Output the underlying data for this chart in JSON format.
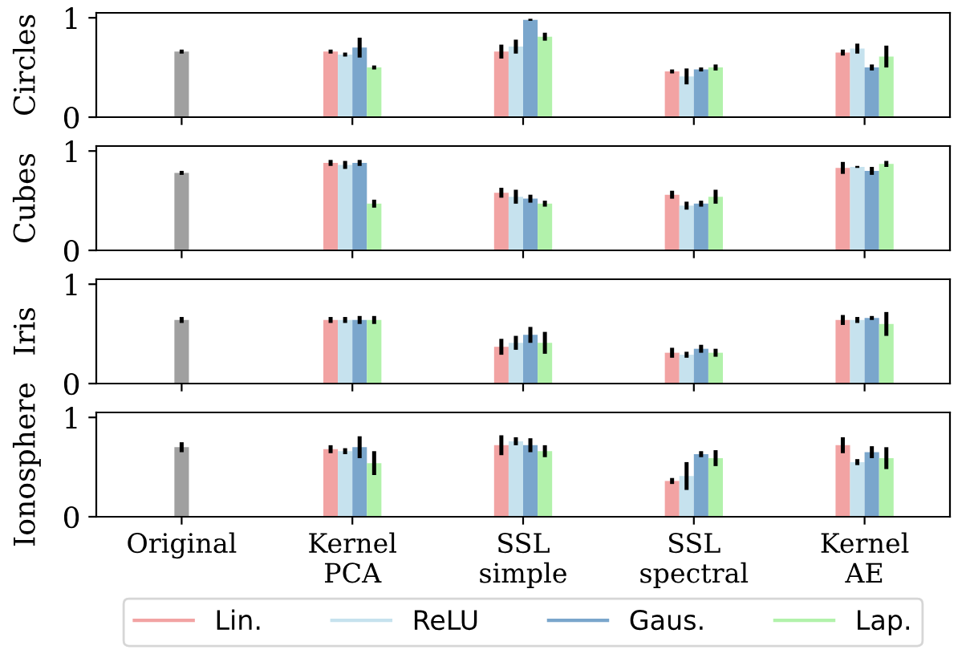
{
  "chart_data": [
    {
      "type": "bar",
      "ylabel": "Circles",
      "categories": [
        null,
        null,
        null,
        null,
        null
      ],
      "ylim": [
        0,
        1.05
      ],
      "yticks": [
        0,
        1
      ],
      "legend": "bottom",
      "series": [
        {
          "color": "#a0a0a0",
          "values": [
            0.66,
            null,
            null,
            null,
            null
          ],
          "errors": [
            0.02,
            null,
            null,
            null,
            null
          ]
        },
        {
          "name": "Lin.",
          "color": "#f2a3a3",
          "values": [
            null,
            0.66,
            0.66,
            0.46,
            0.65
          ],
          "errors": [
            null,
            0.02,
            0.07,
            0.02,
            0.03
          ]
        },
        {
          "name": "ReLU",
          "color": "#c6e2ee",
          "values": [
            null,
            0.63,
            0.71,
            0.41,
            0.69
          ],
          "errors": [
            null,
            0.02,
            0.07,
            0.08,
            0.05
          ]
        },
        {
          "name": "Gaus.",
          "color": "#7aa6cc",
          "values": [
            null,
            0.7,
            0.98,
            0.48,
            0.5
          ],
          "errors": [
            null,
            0.1,
            0.01,
            0.02,
            0.03
          ]
        },
        {
          "name": "Lap.",
          "color": "#b2f2ab",
          "values": [
            null,
            0.5,
            0.81,
            0.5,
            0.61
          ],
          "errors": [
            null,
            0.02,
            0.04,
            0.03,
            0.11
          ]
        }
      ]
    },
    {
      "type": "bar",
      "ylabel": "Cubes",
      "categories": [
        null,
        null,
        null,
        null,
        null
      ],
      "ylim": [
        0,
        1.05
      ],
      "yticks": [
        0,
        1
      ],
      "series": [
        {
          "color": "#a0a0a0",
          "values": [
            0.78,
            null,
            null,
            null,
            null
          ],
          "errors": [
            0.02,
            null,
            null,
            null,
            null
          ]
        },
        {
          "color": "#f2a3a3",
          "values": [
            null,
            0.88,
            0.58,
            0.56,
            0.83
          ],
          "errors": [
            null,
            0.03,
            0.05,
            0.04,
            0.06
          ]
        },
        {
          "color": "#c6e2ee",
          "values": [
            null,
            0.86,
            0.54,
            0.45,
            0.84
          ],
          "errors": [
            null,
            0.04,
            0.07,
            0.04,
            0.01
          ]
        },
        {
          "color": "#7aa6cc",
          "values": [
            null,
            0.88,
            0.52,
            0.47,
            0.8
          ],
          "errors": [
            null,
            0.03,
            0.04,
            0.03,
            0.04
          ]
        },
        {
          "color": "#b2f2ab",
          "values": [
            null,
            0.47,
            0.47,
            0.54,
            0.87
          ],
          "errors": [
            null,
            0.04,
            0.03,
            0.07,
            0.03
          ]
        }
      ]
    },
    {
      "type": "bar",
      "ylabel": "Iris",
      "categories": [
        null,
        null,
        null,
        null,
        null
      ],
      "ylim": [
        0,
        1.05
      ],
      "yticks": [
        0,
        1
      ],
      "series": [
        {
          "color": "#a0a0a0",
          "values": [
            0.64,
            null,
            null,
            null,
            null
          ],
          "errors": [
            0.03,
            null,
            null,
            null,
            null
          ]
        },
        {
          "color": "#f2a3a3",
          "values": [
            null,
            0.64,
            0.37,
            0.31,
            0.64
          ],
          "errors": [
            null,
            0.03,
            0.08,
            0.05,
            0.05
          ]
        },
        {
          "color": "#c6e2ee",
          "values": [
            null,
            0.64,
            0.41,
            0.29,
            0.64
          ],
          "errors": [
            null,
            0.03,
            0.07,
            0.03,
            0.03
          ]
        },
        {
          "color": "#7aa6cc",
          "values": [
            null,
            0.64,
            0.49,
            0.35,
            0.66
          ],
          "errors": [
            null,
            0.04,
            0.08,
            0.04,
            0.02
          ]
        },
        {
          "color": "#b2f2ab",
          "values": [
            null,
            0.64,
            0.41,
            0.31,
            0.6
          ],
          "errors": [
            null,
            0.04,
            0.11,
            0.04,
            0.12
          ]
        }
      ]
    },
    {
      "type": "bar",
      "ylabel": "Ionosphere",
      "categories": [
        "Original",
        "Kernel\nPCA",
        "SSL\nsimple",
        "SSL\nspectral",
        "Kernel\nAE"
      ],
      "ylim": [
        0,
        1.05
      ],
      "yticks": [
        0,
        1
      ],
      "series": [
        {
          "color": "#a0a0a0",
          "values": [
            0.7,
            null,
            null,
            null,
            null
          ],
          "errors": [
            0.05,
            null,
            null,
            null,
            null
          ]
        },
        {
          "color": "#f2a3a3",
          "values": [
            null,
            0.68,
            0.72,
            0.36,
            0.72
          ],
          "errors": [
            null,
            0.04,
            0.1,
            0.03,
            0.08
          ]
        },
        {
          "color": "#c6e2ee",
          "values": [
            null,
            0.66,
            0.76,
            0.41,
            0.55
          ],
          "errors": [
            null,
            0.03,
            0.04,
            0.14,
            0.03
          ]
        },
        {
          "color": "#7aa6cc",
          "values": [
            null,
            0.7,
            0.72,
            0.63,
            0.65
          ],
          "errors": [
            null,
            0.11,
            0.07,
            0.03,
            0.06
          ]
        },
        {
          "color": "#b2f2ab",
          "values": [
            null,
            0.54,
            0.66,
            0.59,
            0.59
          ],
          "errors": [
            null,
            0.12,
            0.06,
            0.08,
            0.11
          ]
        }
      ]
    }
  ]
}
